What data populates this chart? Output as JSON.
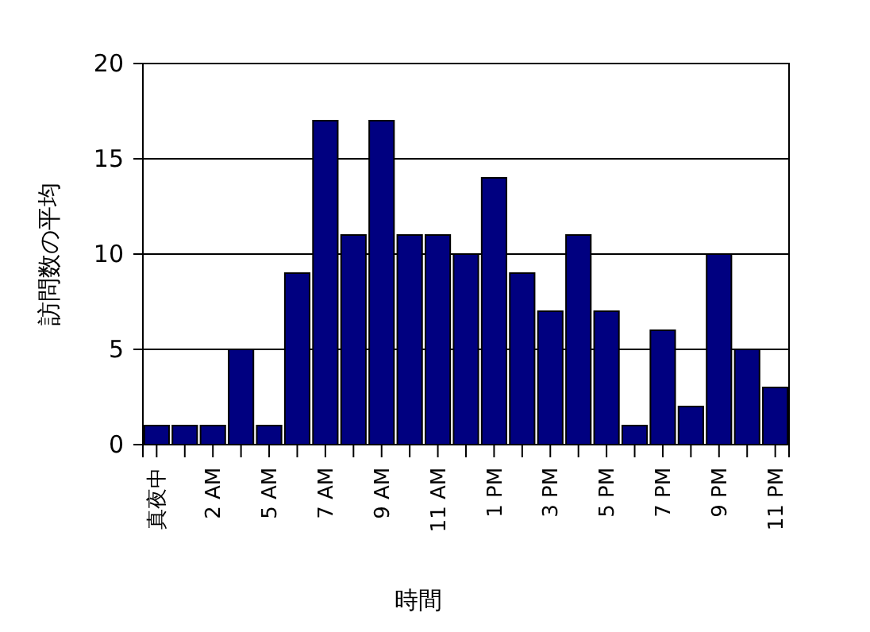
{
  "chart_data": {
    "type": "bar",
    "xlabel": "時間",
    "ylabel": "訪問数の平均",
    "categories": [
      "真夜中",
      null,
      "2 AM",
      null,
      "5 AM",
      null,
      "7 AM",
      null,
      "9 AM",
      null,
      "11 AM",
      null,
      "1 PM",
      null,
      "3 PM",
      null,
      "5 PM",
      null,
      "7 PM",
      null,
      "9 PM",
      null,
      "11 PM"
    ],
    "values": [
      1,
      1,
      1,
      5,
      1,
      9,
      17,
      11,
      17,
      11,
      11,
      10,
      14,
      9,
      7,
      11,
      7,
      1,
      6,
      2,
      10,
      5,
      3
    ],
    "color": "#000080",
    "ylim": [
      0,
      20
    ],
    "yticks": [
      0,
      5,
      10,
      15,
      20
    ],
    "grid": "y"
  }
}
